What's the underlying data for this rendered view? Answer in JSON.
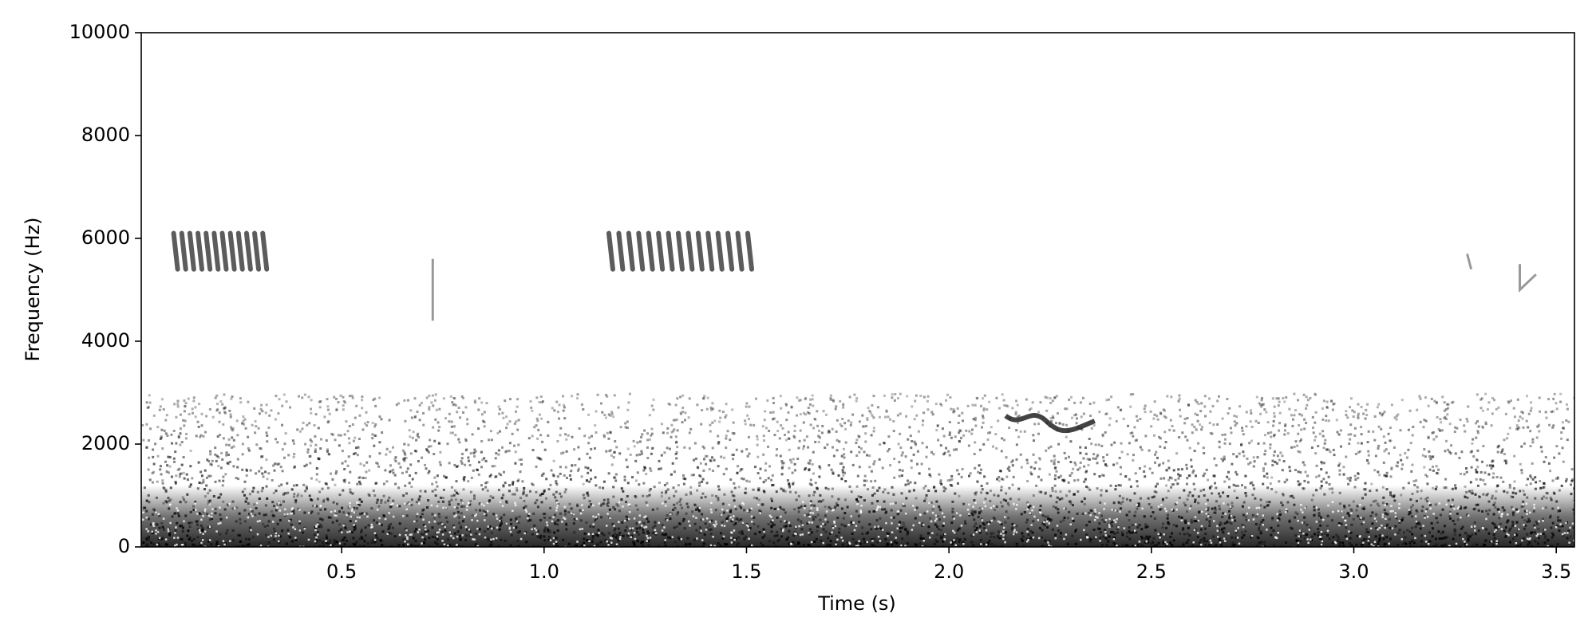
{
  "chart_data": {
    "type": "spectrogram",
    "x_label": "Time (s)",
    "y_label": "Frequency (Hz)",
    "xlim": [
      0.005,
      3.545
    ],
    "ylim": [
      0,
      10000
    ],
    "xticks": [
      0.5,
      {
        "value": 1,
        "label": "1.0"
      },
      1.5,
      {
        "value": 2,
        "label": "2.0"
      },
      2.5,
      {
        "value": 3,
        "label": "3.0"
      },
      3.5
    ],
    "yticks": [
      0,
      2000,
      4000,
      6000,
      8000,
      10000
    ]
  }
}
